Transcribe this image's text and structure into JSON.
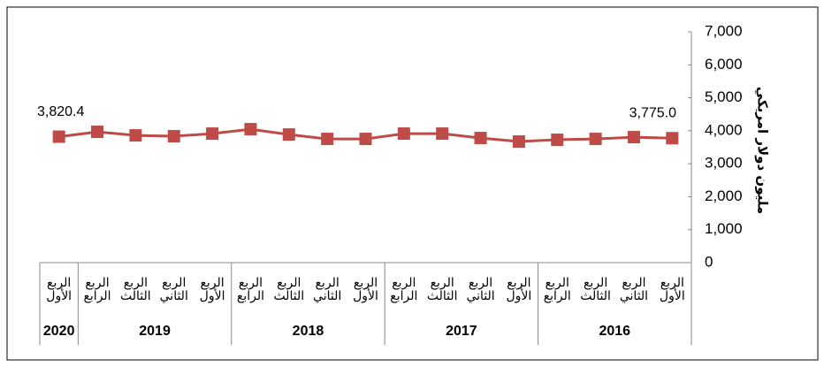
{
  "chart_data": {
    "type": "line",
    "y_axis_label": "مليون دولار امريكي",
    "groups": [
      {
        "label": "2016",
        "categories": [
          "الربع الأول",
          "الربع الثاني",
          "الربع الثالث",
          "الربع الرابع"
        ]
      },
      {
        "label": "2017",
        "categories": [
          "الربع الأول",
          "الربع الثاني",
          "الربع الثالث",
          "الربع الرابع"
        ]
      },
      {
        "label": "2018",
        "categories": [
          "الربع الأول",
          "الربع الثاني",
          "الربع الثالث",
          "الربع الرابع"
        ]
      },
      {
        "label": "2019",
        "categories": [
          "الربع الأول",
          "الربع الثاني",
          "الربع الثالث",
          "الربع الرابع"
        ]
      },
      {
        "label": "2020",
        "categories": [
          "الربع الأول"
        ]
      }
    ],
    "values": [
      3775.0,
      3807,
      3753,
      3727,
      3673,
      3780,
      3914,
      3914,
      3753,
      3753,
      3887,
      4048,
      3914,
      3834,
      3860,
      3968,
      3820.4
    ],
    "value_labels": [
      "3,775.0",
      null,
      null,
      null,
      null,
      null,
      null,
      null,
      null,
      null,
      null,
      null,
      null,
      null,
      null,
      null,
      "3,820.4"
    ],
    "color": "#be4b48",
    "ylim": [
      0,
      7000
    ],
    "yticks": [
      0,
      {
        "value": 1000,
        "label": "1,000"
      },
      {
        "value": 2000,
        "label": "2,000"
      },
      {
        "value": 3000,
        "label": "3,000"
      },
      {
        "value": 4000,
        "label": "4,000"
      },
      {
        "value": 5000,
        "label": "5,000"
      },
      {
        "value": 6000,
        "label": "6,000"
      },
      {
        "value": 7000,
        "label": "7,000"
      }
    ],
    "x_reversed": true
  }
}
